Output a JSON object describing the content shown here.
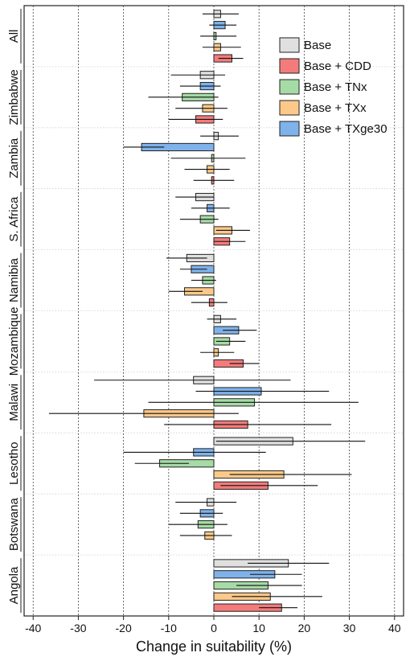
{
  "chart_data": {
    "type": "bar",
    "orientation": "horizontal",
    "title": "",
    "xlabel": "Change in suitability (%)",
    "ylabel": "",
    "xlim": [
      -42,
      42
    ],
    "xticks": [
      -40,
      -30,
      -20,
      -10,
      0,
      10,
      20,
      30,
      40
    ],
    "grid": true,
    "legend_position": "top-right",
    "categories": [
      "Angola",
      "Botswana",
      "Lesotho",
      "Malawi",
      "Mozambique",
      "Namibia",
      "S. Africa",
      "Zambia",
      "Zimbabwe",
      "All"
    ],
    "series": [
      {
        "name": "Base",
        "color": "#e0e0e0",
        "values": [
          16.5,
          -1.5,
          17.5,
          -4.5,
          1.5,
          -6,
          -4,
          1,
          -3,
          1.5
        ],
        "error": [
          [
            7.5,
            25.5
          ],
          [
            -8.5,
            5
          ],
          [
            0.5,
            33.5
          ],
          [
            -26.5,
            17
          ],
          [
            -1.5,
            5
          ],
          [
            -10.5,
            -1.5
          ],
          [
            -8.5,
            0
          ],
          [
            -3,
            5.5
          ],
          [
            -9.5,
            2.5
          ],
          [
            -2.5,
            5.5
          ]
        ]
      },
      {
        "name": "Base + TXge30",
        "color": "#7fb2ea",
        "values": [
          13.5,
          -3,
          -4.5,
          10.5,
          5.5,
          -5,
          -1.5,
          -16,
          -3,
          2.5
        ],
        "error": [
          [
            8,
            19.5
          ],
          [
            -7.5,
            2
          ],
          [
            -20,
            11.5
          ],
          [
            -4,
            25.5
          ],
          [
            2,
            9.5
          ],
          [
            -7.5,
            -1.5
          ],
          [
            -5,
            3.5
          ],
          [
            -20,
            -11
          ],
          [
            -7.5,
            1.5
          ],
          [
            -1,
            5
          ]
        ]
      },
      {
        "name": "Base + TNx",
        "color": "#a6dba6",
        "values": [
          12,
          -3.5,
          -12,
          9,
          3.5,
          -2.5,
          -3,
          -0.5,
          -7,
          0.5
        ],
        "error": [
          [
            5,
            19.5
          ],
          [
            -10,
            3
          ],
          [
            -17.5,
            -5.5
          ],
          [
            -14.5,
            32
          ],
          [
            0.5,
            7
          ],
          [
            -5,
            0.5
          ],
          [
            -7.5,
            1
          ],
          [
            -9.5,
            7
          ],
          [
            -14.5,
            1
          ],
          [
            -3,
            5
          ]
        ]
      },
      {
        "name": "Base + TXx",
        "color": "#fdc98a",
        "values": [
          12.5,
          -2,
          15.5,
          -15.5,
          1,
          -6.5,
          4,
          -1.5,
          -2.5,
          1.5
        ],
        "error": [
          [
            4,
            24
          ],
          [
            -7.5,
            4
          ],
          [
            3.5,
            30.5
          ],
          [
            -36.5,
            5.5
          ],
          [
            -3,
            4.5
          ],
          [
            -10,
            -2.5
          ],
          [
            0.5,
            8
          ],
          [
            -6.5,
            3.5
          ],
          [
            -8.5,
            3
          ],
          [
            -2.5,
            6
          ]
        ]
      },
      {
        "name": "Base + CDD",
        "color": "#f47b7b",
        "values": [
          15,
          null,
          12,
          7.5,
          6.5,
          -1,
          3.5,
          -0.5,
          -4,
          4
        ],
        "error": [
          [
            10,
            18.5
          ],
          null,
          [
            1.5,
            23
          ],
          [
            -11,
            26
          ],
          [
            3.5,
            10
          ],
          [
            -5,
            3
          ],
          [
            0,
            7
          ],
          [
            -4.5,
            4.5
          ],
          [
            -10,
            2
          ],
          [
            1,
            6.5
          ]
        ]
      }
    ]
  },
  "legend": {
    "title": "",
    "items": [
      {
        "label": "Base",
        "color": "#e0e0e0"
      },
      {
        "label": "Base + CDD",
        "color": "#f47b7b"
      },
      {
        "label": "Base + TNx",
        "color": "#a6dba6"
      },
      {
        "label": "Base + TXx",
        "color": "#fdc98a"
      },
      {
        "label": "Base + TXge30",
        "color": "#7fb2ea"
      }
    ]
  }
}
